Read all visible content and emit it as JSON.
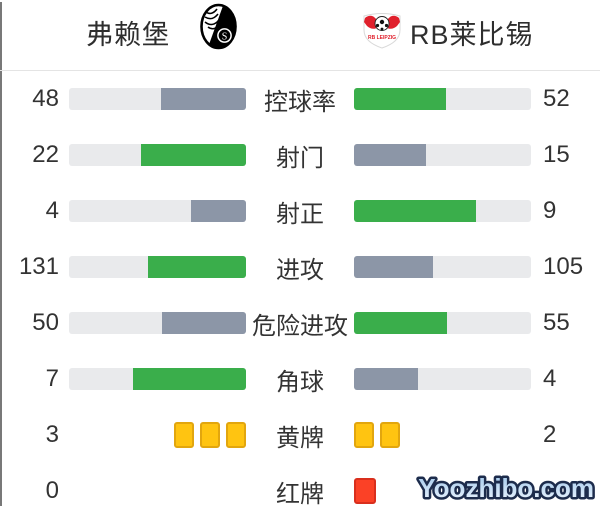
{
  "header": {
    "home": {
      "name": "弗赖堡",
      "logo": "freiburg-crest"
    },
    "away": {
      "name": "RB莱比锡",
      "logo": "rb-leipzig-crest"
    }
  },
  "stats": [
    {
      "type": "bar",
      "label": "控球率",
      "home": "48",
      "away": "52",
      "home_pct": 48,
      "away_pct": 52,
      "winner": "away"
    },
    {
      "type": "bar",
      "label": "射门",
      "home": "22",
      "away": "15",
      "home_pct": 59.5,
      "away_pct": 40.5,
      "winner": "home"
    },
    {
      "type": "bar",
      "label": "射正",
      "home": "4",
      "away": "9",
      "home_pct": 30.8,
      "away_pct": 69.2,
      "winner": "away"
    },
    {
      "type": "bar",
      "label": "进攻",
      "home": "131",
      "away": "105",
      "home_pct": 55.5,
      "away_pct": 44.5,
      "winner": "home"
    },
    {
      "type": "bar",
      "label": "危险进攻",
      "home": "50",
      "away": "55",
      "home_pct": 47.6,
      "away_pct": 52.4,
      "winner": "away"
    },
    {
      "type": "bar",
      "label": "角球",
      "home": "7",
      "away": "4",
      "home_pct": 63.6,
      "away_pct": 36.4,
      "winner": "home"
    },
    {
      "type": "cards",
      "label": "黄牌",
      "home": "3",
      "away": "2",
      "home_cards": 3,
      "away_cards": 2,
      "card_color": "yellow"
    },
    {
      "type": "cards",
      "label": "红牌",
      "home": "0",
      "away": "",
      "home_cards": 0,
      "away_cards": 1,
      "card_color": "red"
    }
  ],
  "watermark": "Yoozhibo.com",
  "colors": {
    "win_green": "#3aae4b",
    "lose_gray": "#8c96a7",
    "track_gray": "#e9eaec",
    "yellow_card": "#ffc411",
    "yellow_card_border": "#e2a60e",
    "red_card": "#fb4126",
    "red_card_border": "#d92f1d",
    "text": "#333333",
    "watermark_fill_top": "#9fc6ea",
    "watermark_fill_bottom": "#eef6ff",
    "watermark_outline": "#1d2c4c"
  },
  "chart_data": {
    "type": "bar",
    "title": "弗赖堡 vs RB莱比锡 比赛技术统计",
    "categories": [
      "控球率",
      "射门",
      "射正",
      "进攻",
      "危险进攻",
      "角球",
      "黄牌",
      "红牌"
    ],
    "series": [
      {
        "name": "弗赖堡",
        "values": [
          48,
          22,
          4,
          131,
          50,
          7,
          3,
          0
        ]
      },
      {
        "name": "RB莱比锡",
        "values": [
          52,
          15,
          9,
          105,
          55,
          4,
          2,
          1
        ]
      }
    ],
    "layout": "paired horizontal bars growing outward from center labels; higher value rendered green, lower value gray; card stats shown as yellow/red card icons; away red-card number obscured by watermark",
    "legend_position": "header",
    "grid": false
  }
}
